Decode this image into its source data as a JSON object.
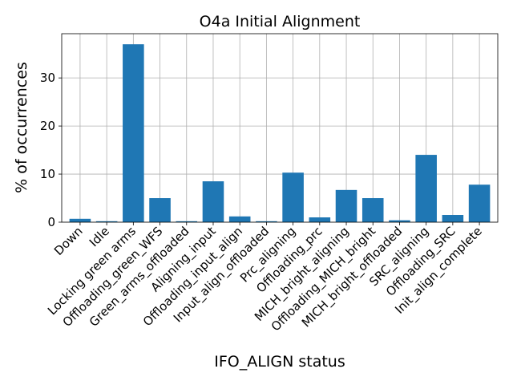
{
  "chart_data": {
    "type": "bar",
    "title": "O4a Initial Alignment",
    "xlabel": "IFO_ALIGN status",
    "ylabel": "% of occurrences",
    "categories": [
      "Down",
      "Idle",
      "Locking green arms",
      "Offloading_green_WFS",
      "Green_arms_offloaded",
      "Aligning_input",
      "Offloading_input_align",
      "Input_align_offloaded",
      "Prc_aligning",
      "Offloading_prc",
      "MICH_bright_aligning",
      "Offloading_MICH_bright",
      "MICH_bright_offloaded",
      "SRC_aligning",
      "Offloading_SRC",
      "Init_align_complete"
    ],
    "values": [
      0.7,
      0.2,
      37.0,
      5.0,
      0.2,
      8.5,
      1.2,
      0.2,
      10.3,
      1.0,
      6.7,
      5.0,
      0.4,
      14.0,
      1.5,
      7.8
    ],
    "ylim": [
      0,
      39.2
    ],
    "yticks": [
      0,
      10,
      20,
      30
    ],
    "grid": true,
    "bar_color": "#1f77b4"
  }
}
